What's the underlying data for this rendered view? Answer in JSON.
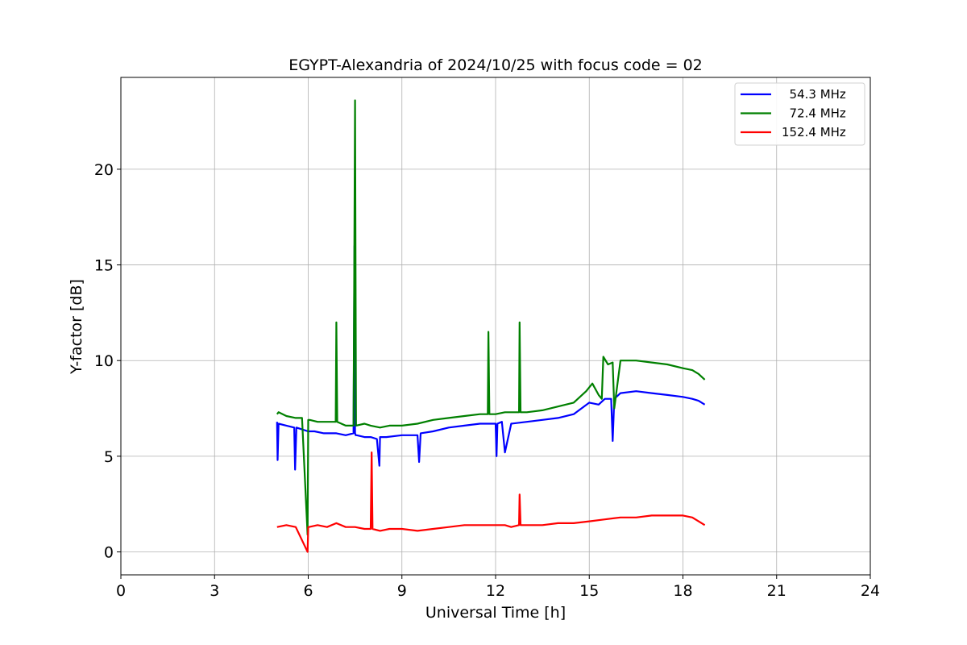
{
  "chart_data": {
    "type": "line",
    "title": "EGYPT-Alexandria of 2024/10/25 with focus code = 02",
    "xlabel": "Universal Time [h]",
    "ylabel": "Y-factor [dB]",
    "xlim": [
      0,
      24
    ],
    "ylim": [
      -1.2,
      24.8
    ],
    "xticks": [
      0,
      3,
      6,
      9,
      12,
      15,
      18,
      21,
      24
    ],
    "yticks": [
      0,
      5,
      10,
      15,
      20
    ],
    "grid": true,
    "legend_position": "top-right",
    "series": [
      {
        "name": "  54.3 MHz",
        "color": "#0000ff",
        "x": [
          5.0,
          5.02,
          5.05,
          5.3,
          5.55,
          5.58,
          5.62,
          5.8,
          6.0,
          6.2,
          6.5,
          6.9,
          7.2,
          7.45,
          7.48,
          7.5,
          7.52,
          7.55,
          7.8,
          8.0,
          8.2,
          8.28,
          8.3,
          8.5,
          9.0,
          9.5,
          9.55,
          9.6,
          10.0,
          10.5,
          11.0,
          11.5,
          12.0,
          12.03,
          12.06,
          12.2,
          12.3,
          12.5,
          13.0,
          13.5,
          14.0,
          14.5,
          15.0,
          15.3,
          15.5,
          15.7,
          15.75,
          15.8,
          16.0,
          16.5,
          17.0,
          17.5,
          18.0,
          18.3,
          18.5,
          18.7
        ],
        "y": [
          6.8,
          4.8,
          6.7,
          6.6,
          6.5,
          4.3,
          6.5,
          6.4,
          6.3,
          6.3,
          6.2,
          6.2,
          6.1,
          6.2,
          16.0,
          6.2,
          6.1,
          6.1,
          6.0,
          6.0,
          5.9,
          4.5,
          6.0,
          6.0,
          6.1,
          6.1,
          4.7,
          6.2,
          6.3,
          6.5,
          6.6,
          6.7,
          6.7,
          5.0,
          6.7,
          6.8,
          5.2,
          6.7,
          6.8,
          6.9,
          7.0,
          7.2,
          7.8,
          7.7,
          8.0,
          8.0,
          5.8,
          8.0,
          8.3,
          8.4,
          8.3,
          8.2,
          8.1,
          8.0,
          7.9,
          7.7
        ]
      },
      {
        "name": "  72.4 MHz",
        "color": "#008000",
        "x": [
          5.0,
          5.05,
          5.3,
          5.6,
          5.8,
          5.98,
          6.0,
          6.05,
          6.3,
          6.6,
          6.88,
          6.9,
          6.93,
          7.2,
          7.45,
          7.5,
          7.53,
          7.8,
          8.0,
          8.3,
          8.6,
          9.0,
          9.5,
          10.0,
          10.5,
          11.0,
          11.5,
          11.75,
          11.77,
          11.8,
          12.0,
          12.3,
          12.5,
          12.75,
          12.77,
          12.8,
          13.0,
          13.5,
          14.0,
          14.5,
          14.9,
          15.1,
          15.3,
          15.4,
          15.45,
          15.6,
          15.75,
          15.8,
          16.0,
          16.5,
          17.0,
          17.5,
          18.0,
          18.3,
          18.5,
          18.7
        ],
        "y": [
          7.2,
          7.3,
          7.1,
          7.0,
          7.0,
          0.9,
          6.9,
          6.9,
          6.8,
          6.8,
          6.8,
          12.0,
          6.8,
          6.6,
          6.6,
          23.6,
          6.6,
          6.7,
          6.6,
          6.5,
          6.6,
          6.6,
          6.7,
          6.9,
          7.0,
          7.1,
          7.2,
          7.2,
          11.5,
          7.2,
          7.2,
          7.3,
          7.3,
          7.3,
          12.0,
          7.3,
          7.3,
          7.4,
          7.6,
          7.8,
          8.4,
          8.8,
          8.2,
          8.0,
          10.2,
          9.8,
          9.9,
          7.5,
          10.0,
          10.0,
          9.9,
          9.8,
          9.6,
          9.5,
          9.3,
          9.0
        ]
      },
      {
        "name": "152.4 MHz",
        "color": "#ff0000",
        "x": [
          5.0,
          5.3,
          5.6,
          5.98,
          6.0,
          6.02,
          6.3,
          6.6,
          6.9,
          7.2,
          7.5,
          7.8,
          8.0,
          8.03,
          8.06,
          8.3,
          8.6,
          9.0,
          9.5,
          10.0,
          10.5,
          11.0,
          11.5,
          12.0,
          12.3,
          12.5,
          12.75,
          12.77,
          12.8,
          13.0,
          13.5,
          14.0,
          14.5,
          15.0,
          15.5,
          16.0,
          16.5,
          17.0,
          17.5,
          18.0,
          18.3,
          18.5,
          18.7
        ],
        "y": [
          1.3,
          1.4,
          1.3,
          0.0,
          1.3,
          1.3,
          1.4,
          1.3,
          1.5,
          1.3,
          1.3,
          1.2,
          1.2,
          5.2,
          1.2,
          1.1,
          1.2,
          1.2,
          1.1,
          1.2,
          1.3,
          1.4,
          1.4,
          1.4,
          1.4,
          1.3,
          1.4,
          3.0,
          1.4,
          1.4,
          1.4,
          1.5,
          1.5,
          1.6,
          1.7,
          1.8,
          1.8,
          1.9,
          1.9,
          1.9,
          1.8,
          1.6,
          1.4
        ]
      }
    ]
  }
}
